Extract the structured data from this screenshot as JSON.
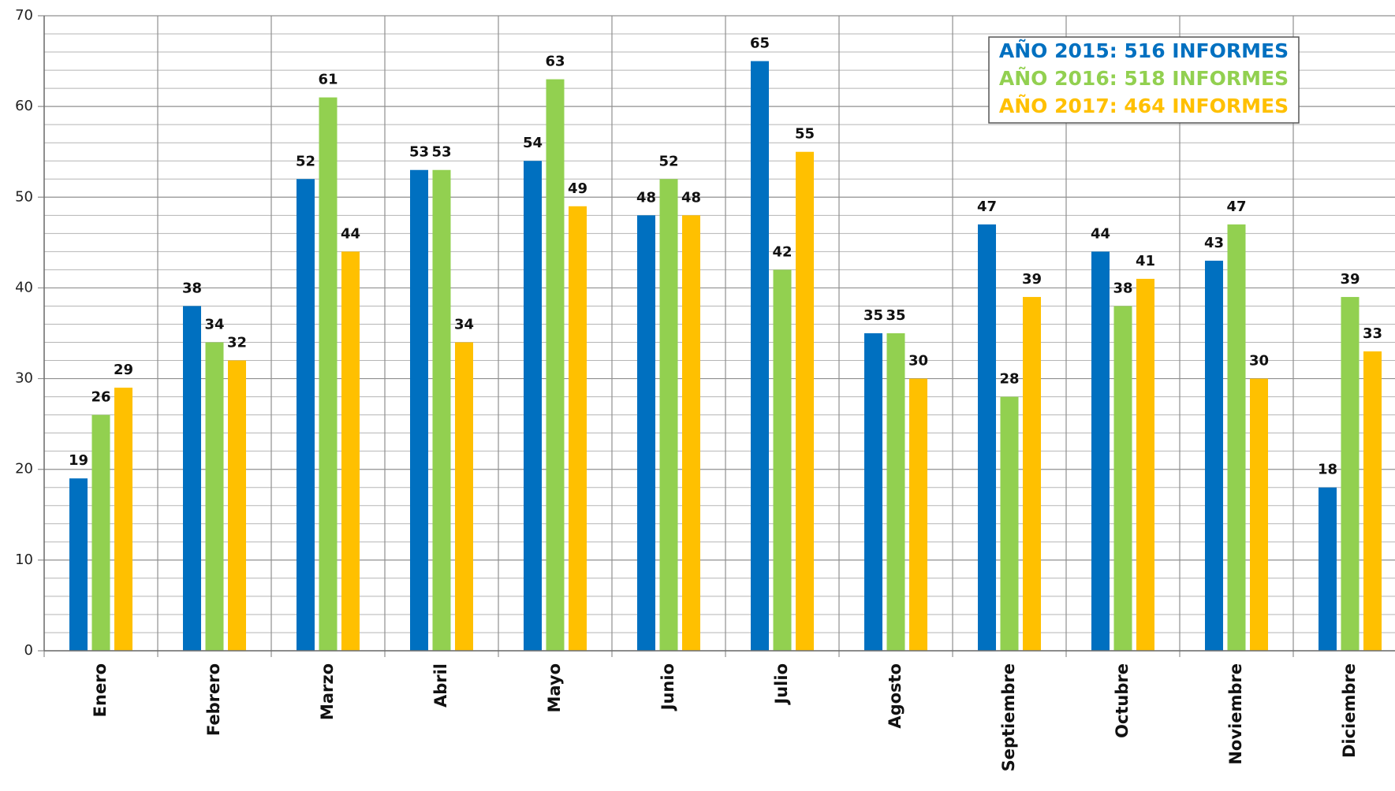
{
  "chart_data": {
    "type": "bar",
    "categories": [
      "Enero",
      "Febrero",
      "Marzo",
      "Abril",
      "Mayo",
      "Junio",
      "Julio",
      "Agosto",
      "Septiembre",
      "Octubre",
      "Noviembre",
      "Diciembre"
    ],
    "series": [
      {
        "name": "AÑO 2015: 516 INFORMES",
        "color": "#0070c0",
        "values": [
          19,
          38,
          52,
          53,
          54,
          48,
          65,
          35,
          47,
          44,
          43,
          18
        ]
      },
      {
        "name": "AÑO 2016: 518 INFORMES",
        "color": "#92d050",
        "values": [
          26,
          34,
          61,
          53,
          63,
          52,
          42,
          35,
          28,
          38,
          47,
          39
        ]
      },
      {
        "name": "AÑO 2017: 464 INFORMES",
        "color": "#ffc000",
        "values": [
          29,
          32,
          44,
          34,
          49,
          48,
          55,
          30,
          39,
          41,
          30,
          33
        ]
      }
    ],
    "ylim": [
      0,
      70
    ],
    "yticks": [
      0,
      10,
      20,
      30,
      40,
      50,
      60,
      70
    ],
    "yminorticks": [
      2,
      4,
      6,
      8,
      12,
      14,
      16,
      18,
      22,
      24,
      26,
      28,
      32,
      34,
      36,
      38,
      42,
      44,
      46,
      48,
      52,
      54,
      56,
      58,
      62,
      64,
      66,
      68
    ],
    "grid": true,
    "legend": "top-right"
  }
}
